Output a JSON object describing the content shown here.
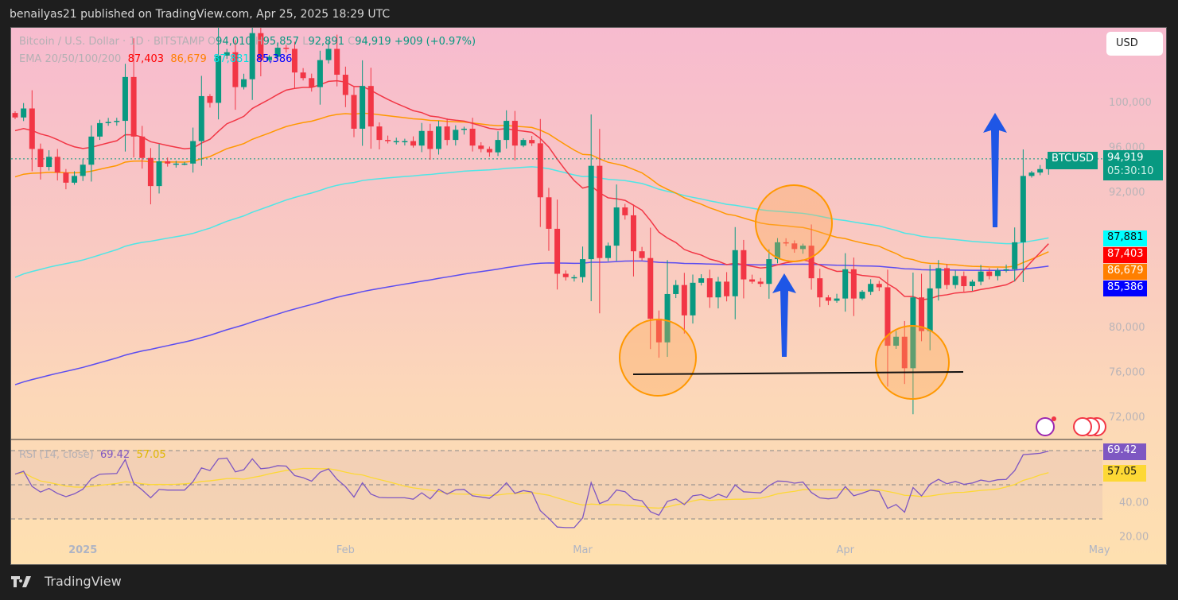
{
  "header": {
    "published": "benailyas21 published on TradingView.com, Apr 25, 2025 18:29 UTC"
  },
  "legend": {
    "symbol": "Bitcoin / U.S. Dollar · 1D · BITSTAMP",
    "o_label": "O",
    "open": "94,010",
    "h_label": "H",
    "high": "95,857",
    "l_label": "L",
    "low": "92,891",
    "c_label": "C",
    "close": "94,919",
    "change": "+909 (+0.97%)",
    "ema_title": "EMA 20/50/100/200",
    "ema20": "87,403",
    "ema50": "86,679",
    "ema100": "87,881",
    "ema200": "85,386",
    "rsi_title": "RSI (14, close)",
    "rsi": "69.42",
    "rsi_ma": "57.05"
  },
  "currency_button": "USD",
  "price_tag": {
    "symbol": "BTCUSD",
    "price": "94,919",
    "countdown": "05:30:10"
  },
  "ema_tags": [
    {
      "value": "87,881",
      "color": "#00ffff",
      "text_color": "#111111"
    },
    {
      "value": "87,403",
      "color": "#ff0000",
      "text_color": "#ffffff"
    },
    {
      "value": "86,679",
      "color": "#ff7f00",
      "text_color": "#ffffff"
    },
    {
      "value": "85,386",
      "color": "#0000ff",
      "text_color": "#ffffff"
    }
  ],
  "rsi_tags": [
    {
      "value": "69.42",
      "color": "#7e57c2",
      "text_color": "#ffffff"
    },
    {
      "value": "57.05",
      "color": "#fdd835",
      "text_color": "#111111"
    }
  ],
  "footer": {
    "brand": "TradingView"
  },
  "colors": {
    "up": "#089981",
    "down": "#f23645",
    "ema20": "#f23645",
    "ema50": "#ff9800",
    "ema100": "#4ee6e6",
    "ema200": "#5b4cf0",
    "rsi": "#7e57c2",
    "rsi_ma": "#fdd835",
    "annotation_circle": "#ff9800",
    "annotation_arrow": "#1e56e6"
  },
  "chart_data": {
    "type": "candlestick",
    "title": "Bitcoin / U.S. Dollar · 1D · BITSTAMP",
    "start_date": "2024-12-24",
    "closes": [
      98600,
      99400,
      95800,
      94200,
      95100,
      93700,
      92800,
      93400,
      94400,
      96900,
      98100,
      98200,
      98300,
      102200,
      96900,
      95000,
      92500,
      94700,
      94500,
      94500,
      94500,
      96500,
      100500,
      99900,
      104100,
      104400,
      101300,
      102000,
      106100,
      103700,
      104000,
      104800,
      104700,
      102600,
      102100,
      101300,
      103700,
      104700,
      102400,
      100600,
      97600,
      101400,
      97800,
      96600,
      96500,
      96500,
      96500,
      96100,
      97400,
      95800,
      97800,
      96600,
      97500,
      97600,
      96100,
      95800,
      95500,
      96600,
      98300,
      96100,
      96600,
      96300,
      91500,
      88700,
      84700,
      84400,
      84400,
      86000,
      94300,
      86100,
      87200,
      90600,
      89900,
      86700,
      86100,
      80700,
      78600,
      82900,
      83700,
      81000,
      83900,
      84300,
      82600,
      84000,
      82700,
      86800,
      84200,
      84000,
      83800,
      86000,
      87500,
      87400,
      86900,
      87200,
      84300,
      82600,
      82300,
      82500,
      85100,
      82500,
      83100,
      83800,
      83500,
      78300,
      79100,
      76300,
      82600,
      79600,
      83400,
      85200,
      83700,
      84500,
      83600,
      84000,
      84900,
      84500,
      85000,
      85100,
      87500,
      93400,
      93700,
      94010,
      94919
    ],
    "ema_seeds": {
      "ema20": 97300,
      "ema50": 93100,
      "ema100": 84100,
      "ema200": 74600
    },
    "y_ticks": [
      "100,000",
      "96,000",
      "92,000",
      "80,000",
      "76,000",
      "72,000"
    ],
    "y_tick_values": [
      100000,
      96000,
      92000,
      80000,
      76000,
      72000
    ],
    "x_ticks": [
      {
        "label": "2025",
        "day": 8
      },
      {
        "label": "Feb",
        "day": 39
      },
      {
        "label": "Mar",
        "day": 67
      },
      {
        "label": "Apr",
        "day": 98
      },
      {
        "label": "May",
        "day": 128
      }
    ],
    "rsi_ticks": [
      "40.00",
      "20.00"
    ],
    "rsi_tick_values": [
      40,
      20
    ],
    "rsi_bands": [
      70,
      50,
      30
    ],
    "last_price": 94919,
    "support_level": 75800,
    "annotations": [
      "circle around early-March low",
      "circle at late-March rejection under EMA100",
      "circle around April low",
      "support line ~76,000",
      "up arrow mid-March",
      "up arrow late April"
    ]
  }
}
